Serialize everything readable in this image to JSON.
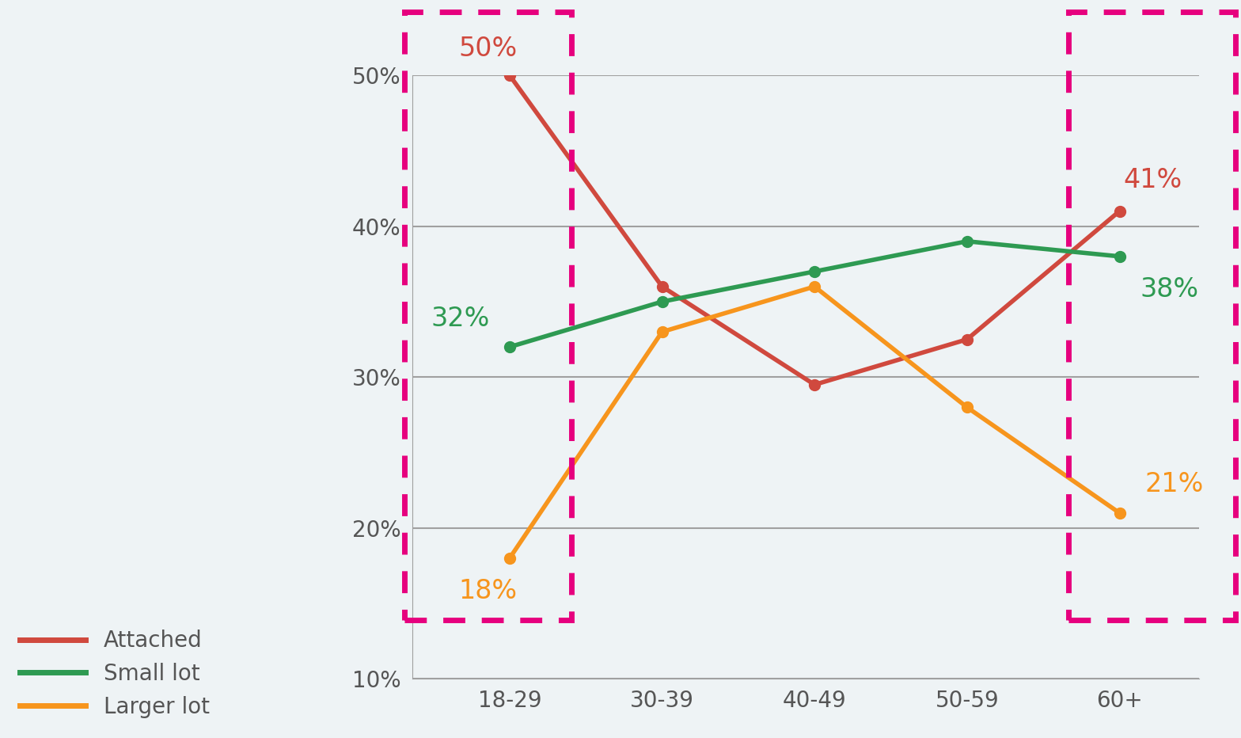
{
  "chart_data": {
    "type": "line",
    "categories": [
      "18-29",
      "30-39",
      "40-49",
      "50-59",
      "60+"
    ],
    "series": [
      {
        "name": "Attached",
        "color": "#d0493e",
        "values": [
          50,
          36,
          29.5,
          32.5,
          41
        ],
        "value_labels": [
          "50%",
          null,
          null,
          null,
          "41%"
        ]
      },
      {
        "name": "Small lot",
        "color": "#2e9a52",
        "values": [
          32,
          35,
          37,
          39,
          38
        ],
        "value_labels": [
          "32%",
          null,
          null,
          null,
          "38%"
        ]
      },
      {
        "name": "Larger lot",
        "color": "#f7951d",
        "values": [
          18,
          33,
          36,
          28,
          21
        ],
        "value_labels": [
          "18%",
          null,
          null,
          null,
          "21%"
        ]
      }
    ],
    "ylim": [
      10,
      50
    ],
    "yticks": [
      {
        "value": 10,
        "label": "10%"
      },
      {
        "value": 20,
        "label": "20%"
      },
      {
        "value": 30,
        "label": "30%"
      },
      {
        "value": 40,
        "label": "40%"
      },
      {
        "value": 50,
        "label": "50%"
      }
    ],
    "grid": true,
    "legend": "lower left",
    "data_labels": true,
    "marker": "o"
  }
}
